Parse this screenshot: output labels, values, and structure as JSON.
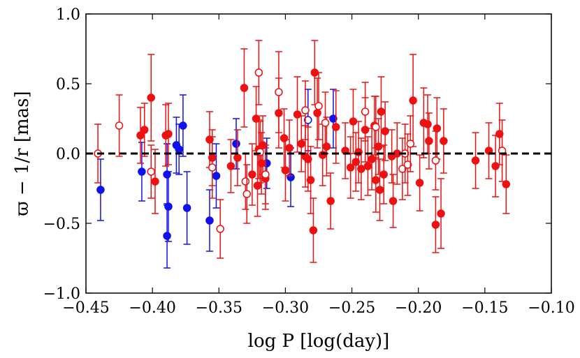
{
  "chart_data": {
    "type": "scatter",
    "xlabel": "log P [log(day)]",
    "ylabel": "ϖ − 1/r [mas]",
    "xlim": [
      -0.45,
      -0.1
    ],
    "ylim": [
      -1.0,
      1.0
    ],
    "xticks": [
      -0.45,
      -0.4,
      -0.35,
      -0.3,
      -0.25,
      -0.2,
      -0.15,
      -0.1
    ],
    "xtick_labels": [
      "−0.45",
      "−0.40",
      "−0.35",
      "−0.30",
      "−0.25",
      "−0.20",
      "−0.15",
      "−0.10"
    ],
    "yticks": [
      1.0,
      0.5,
      0.0,
      -0.5,
      -1.0
    ],
    "ytick_labels": [
      "1.0",
      "0.5",
      "0.0",
      "−0.5",
      "−1.0"
    ],
    "reference_line": {
      "y": 0.0,
      "style": "dashed",
      "color": "#000000"
    },
    "colors": {
      "red": "#ee1111",
      "blue": "#1111ee"
    },
    "series": [
      {
        "name": "blue-filled",
        "color": "blue",
        "marker": "filled",
        "points": [
          [
            -0.439,
            -0.26,
            0.22
          ],
          [
            -0.408,
            -0.13,
            0.21
          ],
          [
            -0.389,
            -0.15,
            0.22
          ],
          [
            -0.388,
            -0.38,
            0.25
          ],
          [
            -0.389,
            -0.59,
            0.23
          ],
          [
            -0.382,
            0.06,
            0.2
          ],
          [
            -0.38,
            0.03,
            0.18
          ],
          [
            -0.377,
            0.2,
            0.22
          ],
          [
            -0.374,
            -0.39,
            0.26
          ],
          [
            -0.357,
            -0.48,
            0.22
          ],
          [
            -0.352,
            -0.16,
            0.23
          ],
          [
            -0.337,
            0.07,
            0.18
          ],
          [
            -0.314,
            -0.07,
            0.18
          ],
          [
            -0.296,
            -0.17,
            0.21
          ],
          [
            -0.264,
            0.25,
            0.21
          ]
        ]
      },
      {
        "name": "blue-open",
        "color": "blue",
        "marker": "open",
        "points": [
          [
            -0.283,
            0.24,
            0.22
          ]
        ]
      },
      {
        "name": "red-filled",
        "color": "red",
        "marker": "filled",
        "points": [
          [
            -0.409,
            0.13,
            0.2
          ],
          [
            -0.406,
            0.17,
            0.19
          ],
          [
            -0.401,
            0.4,
            0.31
          ],
          [
            -0.398,
            -0.2,
            0.23
          ],
          [
            -0.39,
            0.13,
            0.22
          ],
          [
            -0.388,
            0.14,
            0.22
          ],
          [
            -0.357,
            0.1,
            0.2
          ],
          [
            -0.355,
            -0.03,
            0.2
          ],
          [
            -0.341,
            -0.09,
            0.19
          ],
          [
            -0.336,
            -0.03,
            0.2
          ],
          [
            -0.331,
            0.47,
            0.28
          ],
          [
            -0.325,
            -0.15,
            0.22
          ],
          [
            -0.322,
            0.25,
            0.23
          ],
          [
            -0.321,
            -0.23,
            0.22
          ],
          [
            -0.32,
            0.03,
            0.21
          ],
          [
            -0.318,
            -0.07,
            0.22
          ],
          [
            -0.317,
            0.06,
            0.21
          ],
          [
            -0.315,
            -0.18,
            0.22
          ],
          [
            -0.305,
            0.29,
            0.25
          ],
          [
            -0.301,
            0.11,
            0.21
          ],
          [
            -0.3,
            -0.12,
            0.22
          ],
          [
            -0.297,
            0.04,
            0.2
          ],
          [
            -0.291,
            0.28,
            0.27
          ],
          [
            -0.288,
            0.07,
            0.2
          ],
          [
            -0.285,
            -0.02,
            0.22
          ],
          [
            -0.283,
            -0.04,
            0.23
          ],
          [
            -0.281,
            -0.19,
            0.24
          ],
          [
            -0.279,
            -0.55,
            0.23
          ],
          [
            -0.278,
            0.58,
            0.23
          ],
          [
            -0.276,
            0.29,
            0.25
          ],
          [
            -0.272,
            -0.01,
            0.22
          ],
          [
            -0.269,
            0.05,
            0.21
          ],
          [
            -0.266,
            -0.34,
            0.2
          ],
          [
            -0.262,
            0.19,
            0.26
          ],
          [
            -0.255,
            0.02,
            0.2
          ],
          [
            -0.251,
            -0.1,
            0.22
          ],
          [
            -0.249,
            0.23,
            0.23
          ],
          [
            -0.247,
            -0.06,
            0.21
          ],
          [
            -0.245,
            0.01,
            0.22
          ],
          [
            -0.243,
            -0.11,
            0.22
          ],
          [
            -0.24,
            0.17,
            0.23
          ],
          [
            -0.238,
            -0.09,
            0.21
          ],
          [
            -0.235,
            -0.04,
            0.22
          ],
          [
            -0.233,
            0.2,
            0.21
          ],
          [
            -0.232,
            -0.19,
            0.23
          ],
          [
            -0.23,
            0.05,
            0.2
          ],
          [
            -0.229,
            -0.26,
            0.22
          ],
          [
            -0.228,
            0.3,
            0.25
          ],
          [
            -0.226,
            -0.15,
            0.21
          ],
          [
            -0.225,
            0.16,
            0.21
          ],
          [
            -0.22,
            -0.02,
            0.19
          ],
          [
            -0.219,
            -0.34,
            0.19
          ],
          [
            -0.216,
            0.0,
            0.22
          ],
          [
            -0.204,
            0.38,
            0.33
          ],
          [
            -0.199,
            -0.21,
            0.2
          ],
          [
            -0.196,
            0.22,
            0.25
          ],
          [
            -0.193,
            0.21,
            0.21
          ],
          [
            -0.192,
            0.09,
            0.2
          ],
          [
            -0.187,
            -0.51,
            0.2
          ],
          [
            -0.186,
            0.18,
            0.22
          ],
          [
            -0.183,
            -0.43,
            0.25
          ],
          [
            -0.181,
            0.09,
            0.23
          ],
          [
            -0.157,
            -0.05,
            0.2
          ],
          [
            -0.147,
            0.02,
            0.2
          ],
          [
            -0.142,
            -0.09,
            0.22
          ],
          [
            -0.139,
            0.14,
            0.22
          ],
          [
            -0.134,
            -0.22,
            0.21
          ]
        ]
      },
      {
        "name": "red-open",
        "color": "red",
        "marker": "open",
        "points": [
          [
            -0.441,
            0.0,
            0.21
          ],
          [
            -0.425,
            0.2,
            0.22
          ],
          [
            -0.401,
            -0.13,
            0.19
          ],
          [
            -0.355,
            -0.1,
            0.22
          ],
          [
            -0.349,
            -0.54,
            0.21
          ],
          [
            -0.33,
            -0.2,
            0.2
          ],
          [
            -0.329,
            -0.29,
            0.21
          ],
          [
            -0.32,
            0.58,
            0.23
          ],
          [
            -0.319,
            0.01,
            0.22
          ],
          [
            -0.315,
            -0.15,
            0.21
          ],
          [
            -0.305,
            0.44,
            0.29
          ],
          [
            -0.285,
            0.31,
            0.21
          ],
          [
            -0.275,
            0.34,
            0.24
          ],
          [
            -0.27,
            0.22,
            0.22
          ],
          [
            -0.24,
            0.3,
            0.21
          ],
          [
            -0.232,
            0.19,
            0.22
          ],
          [
            -0.212,
            -0.11,
            0.22
          ],
          [
            -0.21,
            0.0,
            0.21
          ],
          [
            -0.208,
            -0.08,
            0.22
          ],
          [
            -0.206,
            0.07,
            0.2
          ],
          [
            -0.187,
            -0.05,
            0.21
          ],
          [
            -0.137,
            0.02,
            0.22
          ]
        ]
      }
    ]
  }
}
